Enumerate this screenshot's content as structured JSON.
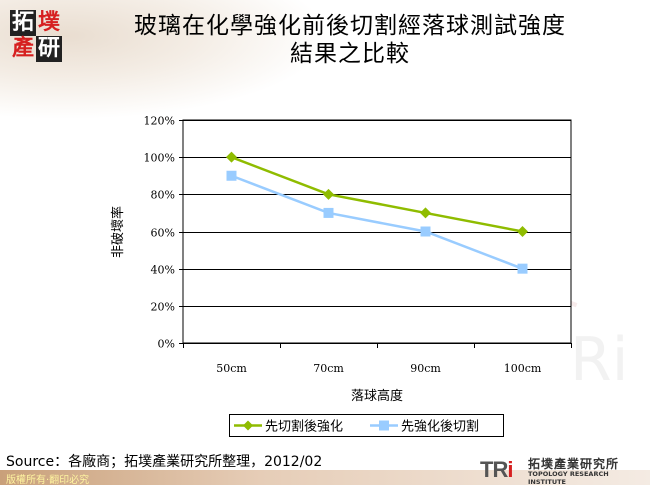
{
  "header": {
    "logo_chars": [
      "拓",
      "墣",
      "產",
      "研"
    ],
    "title_line1": "玻璃在化學強化前後切割經落球測試強度",
    "title_line2": "結果之比較"
  },
  "chart_data": {
    "type": "line",
    "title": "玻璃在化學強化前後切割經落球測試強度結果之比較",
    "xlabel": "落球高度",
    "ylabel": "非破壞率",
    "categories": [
      "50cm",
      "70cm",
      "90cm",
      "100cm"
    ],
    "yticks": [
      "0%",
      "20%",
      "40%",
      "60%",
      "80%",
      "100%",
      "120%"
    ],
    "ylim": [
      0,
      120
    ],
    "grid": true,
    "legend_position": "bottom",
    "series": [
      {
        "name": "先切割後強化",
        "values": [
          100,
          80,
          70,
          60
        ],
        "color": "#8fbc00",
        "marker": "diamond"
      },
      {
        "name": "先強化後切割",
        "values": [
          90,
          70,
          60,
          40
        ],
        "color": "#99ccff",
        "marker": "square"
      }
    ]
  },
  "footer": {
    "source": "Source：各廠商；拓墣產業研究所整理，2012/02",
    "copyright": "版權所有‧翻印必究",
    "brand_mark": "TR",
    "brand_mark_i": "i",
    "brand_cn": "拓墣產業研究所",
    "brand_en": "TOPOLOGY RESEARCH INSTITUTE"
  }
}
